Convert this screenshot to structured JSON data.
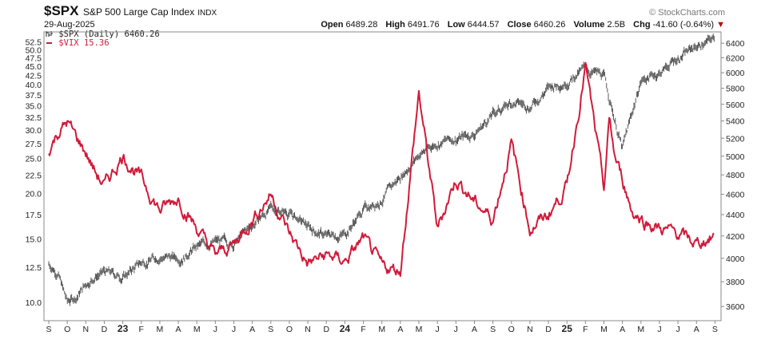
{
  "header": {
    "symbol": "$SPX",
    "name": "S&P 500 Large Cap Index",
    "exchange": "INDX",
    "date": "29-Aug-2025",
    "brand": "© StockCharts.com",
    "open_label": "Open",
    "open": "6489.28",
    "high_label": "High",
    "high": "6491.76",
    "low_label": "Low",
    "low": "6444.57",
    "close_label": "Close",
    "close": "6460.26",
    "volume_label": "Volume",
    "volume": "2.5B",
    "chg_label": "Chg",
    "chg": "-41.60 (-0.64%)",
    "chg_arrow": "▼"
  },
  "legend": {
    "spx": "$SPX (Daily) 6460.26",
    "vix": "$VIX 15.36",
    "spx_icon": "bar-chart-icon",
    "vix_icon": "line-dash-icon"
  },
  "colors": {
    "spx": "#333333",
    "vix": "#d11a3a",
    "down_arrow": "#c40000"
  },
  "chart_data": {
    "type": "line",
    "scale": "log",
    "x_ticks": [
      "S",
      "O",
      "N",
      "D",
      "23",
      "F",
      "M",
      "A",
      "M",
      "J",
      "J",
      "A",
      "S",
      "O",
      "N",
      "D",
      "24",
      "F",
      "M",
      "A",
      "M",
      "J",
      "J",
      "A",
      "S",
      "O",
      "N",
      "D",
      "25",
      "F",
      "M",
      "A",
      "M",
      "J",
      "J",
      "A",
      "S"
    ],
    "left_axis_ticks": [
      10.0,
      12.5,
      15.0,
      17.5,
      20.0,
      22.5,
      25.0,
      27.5,
      30.0,
      32.5,
      35.0,
      37.5,
      40.0,
      42.5,
      45.0,
      47.5,
      50.0,
      52.5
    ],
    "right_axis_ticks": [
      3600,
      3800,
      4000,
      4200,
      4400,
      4600,
      4800,
      5000,
      5200,
      5400,
      5600,
      5800,
      6000,
      6200,
      6400
    ],
    "left_axis_range": [
      8.9,
      56.0
    ],
    "right_axis_range": [
      3490,
      6560
    ],
    "series": [
      {
        "name": "$SPX (Daily)",
        "axis": "right",
        "style": "bar",
        "x": [
          0,
          0.5,
          1,
          1.5,
          2,
          2.5,
          3,
          4,
          5,
          6,
          7,
          8,
          9,
          10,
          11,
          12,
          13,
          14,
          15,
          16,
          17,
          18,
          19,
          20,
          21,
          22,
          23,
          24,
          25,
          26,
          27,
          28,
          29,
          30,
          31,
          32,
          33,
          34,
          35,
          36
        ],
        "values": [
          3950,
          3880,
          3630,
          3680,
          3780,
          3850,
          3880,
          3840,
          3960,
          4020,
          4000,
          4100,
          4150,
          4130,
          4300,
          4460,
          4420,
          4280,
          4200,
          4220,
          4450,
          4550,
          4780,
          5020,
          5150,
          5200,
          5250,
          5480,
          5620,
          5580,
          5800,
          5900,
          6050,
          5950,
          5080,
          5900,
          6000,
          6200,
          6360,
          6460
        ]
      },
      {
        "name": "$VIX",
        "axis": "left",
        "style": "line",
        "x": [
          0,
          0.5,
          1,
          1.5,
          2,
          2.5,
          3,
          4,
          5,
          6,
          7,
          8,
          9,
          10,
          11,
          12,
          13,
          14,
          15,
          16,
          17,
          18,
          19,
          20,
          21,
          22,
          23,
          24,
          25,
          26,
          27,
          28,
          29,
          30,
          30.3,
          30.6,
          31,
          31.5,
          32,
          33,
          34,
          35,
          36
        ],
        "values": [
          26.5,
          29.5,
          31.5,
          28.5,
          26.0,
          23.0,
          21.0,
          25.5,
          22.0,
          18.0,
          19.5,
          16.0,
          13.5,
          14.5,
          17.0,
          20.0,
          15.5,
          12.8,
          13.5,
          13.0,
          15.0,
          12.5,
          12.3,
          38.0,
          16.0,
          22.0,
          19.0,
          17.0,
          27.5,
          16.0,
          17.5,
          21.0,
          45.2,
          20.5,
          32.0,
          25.0,
          22.0,
          18.0,
          17.0,
          16.0,
          15.5,
          14.5,
          15.36
        ]
      }
    ]
  }
}
